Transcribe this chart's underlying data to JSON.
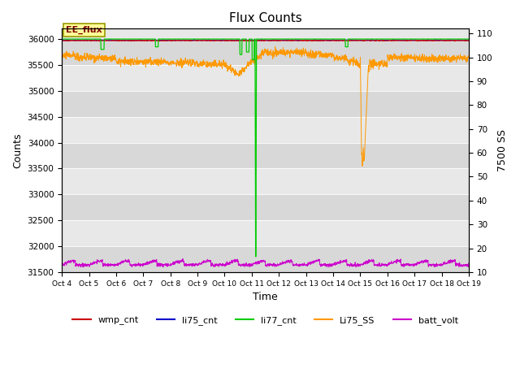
{
  "title": "Flux Counts",
  "xlabel": "Time",
  "ylabel_left": "Counts",
  "ylabel_right": "7500 SS",
  "ylim_left": [
    31500,
    36200
  ],
  "ylim_right": [
    10,
    112
  ],
  "yticks_left": [
    31500,
    32000,
    32500,
    33000,
    33500,
    34000,
    34500,
    35000,
    35500,
    36000
  ],
  "yticks_right": [
    10,
    20,
    30,
    40,
    50,
    60,
    70,
    80,
    90,
    100,
    110
  ],
  "xtick_labels": [
    "Oct 4",
    "Oct 5",
    "Oct 6",
    "Oct 7",
    "Oct 8",
    "Oct 9",
    "Oct 10",
    "Oct 11",
    "Oct 12",
    "Oct 13",
    "Oct 14",
    "Oct 15",
    "Oct 16",
    "Oct 17",
    "Oct 18",
    "Oct 19"
  ],
  "bg_color_dark": "#d8d8d8",
  "bg_color_light": "#e8e8e8",
  "fig_bg": "#ffffff",
  "legend_labels": [
    "wmp_cnt",
    "li75_cnt",
    "li77_cnt",
    "Li75_SS",
    "batt_volt"
  ],
  "legend_colors": [
    "#cc0000",
    "#0000cc",
    "#00cc00",
    "#ff9900",
    "#cc00cc"
  ],
  "annotation_label": "EE_flux",
  "annotation_color": "#800000",
  "annotation_bg": "#ffff99",
  "annotation_edge": "#999900"
}
